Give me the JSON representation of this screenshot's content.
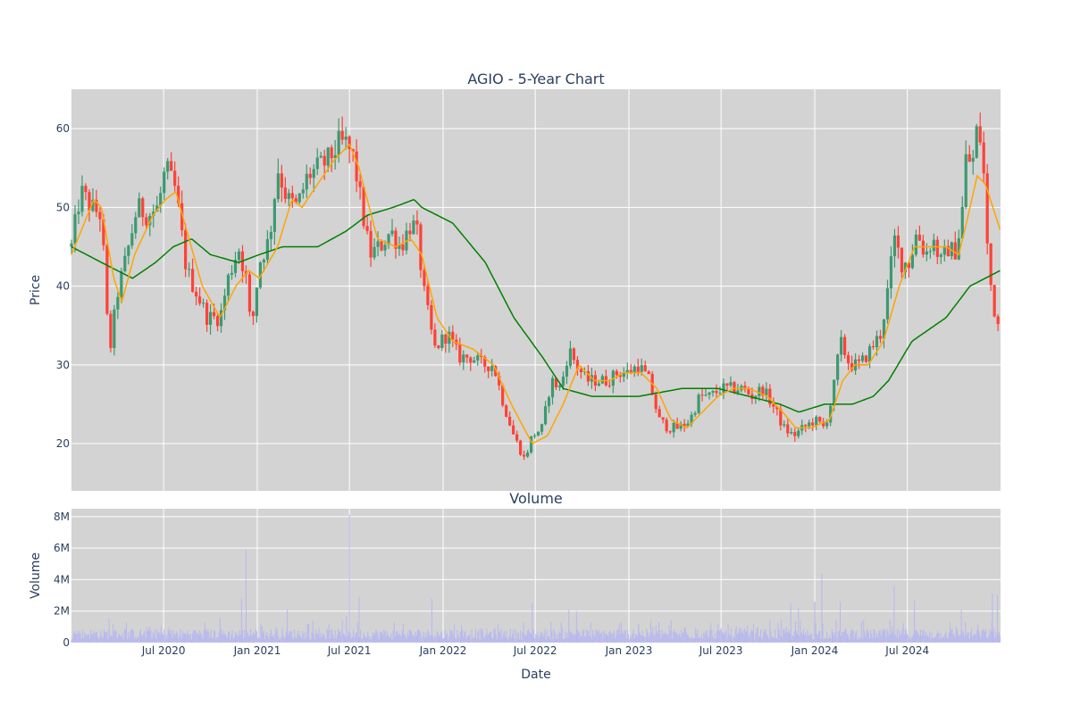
{
  "chart_data": [
    {
      "type": "candlestick",
      "title": "AGIO - 5-Year Chart",
      "xlabel": "",
      "ylabel": "Price",
      "x_range": [
        "2020-01-02",
        "2024-12-31"
      ],
      "ylim": [
        14,
        65
      ],
      "y_ticks": [
        20,
        30,
        40,
        50,
        60
      ],
      "grid": true,
      "legend": "none",
      "colors": {
        "increasing": "#3d9970",
        "decreasing": "#ff4136",
        "ma_short": "#ffa500",
        "ma_long": "#008000",
        "plot_bg": "#d3d3d3"
      },
      "price_anchors": [
        [
          "2020-01-02",
          45
        ],
        [
          "2020-01-20",
          52
        ],
        [
          "2020-02-10",
          50
        ],
        [
          "2020-03-01",
          49
        ],
        [
          "2020-03-16",
          31
        ],
        [
          "2020-04-01",
          39
        ],
        [
          "2020-04-20",
          44
        ],
        [
          "2020-05-10",
          50
        ],
        [
          "2020-06-01",
          49
        ],
        [
          "2020-06-20",
          50
        ],
        [
          "2020-07-05",
          55
        ],
        [
          "2020-07-25",
          52
        ],
        [
          "2020-08-15",
          42
        ],
        [
          "2020-09-05",
          39
        ],
        [
          "2020-09-25",
          36
        ],
        [
          "2020-10-20",
          36
        ],
        [
          "2020-11-05",
          41
        ],
        [
          "2020-11-25",
          45
        ],
        [
          "2020-12-10",
          41
        ],
        [
          "2020-12-20",
          34
        ],
        [
          "2021-01-05",
          43
        ],
        [
          "2021-01-25",
          46
        ],
        [
          "2021-02-10",
          55
        ],
        [
          "2021-03-01",
          51
        ],
        [
          "2021-03-20",
          50
        ],
        [
          "2021-04-10",
          54
        ],
        [
          "2021-05-01",
          55
        ],
        [
          "2021-05-20",
          56
        ],
        [
          "2021-06-10",
          58
        ],
        [
          "2021-06-25",
          58
        ],
        [
          "2021-07-10",
          56
        ],
        [
          "2021-07-25",
          50
        ],
        [
          "2021-08-10",
          44
        ],
        [
          "2021-08-30",
          45
        ],
        [
          "2021-09-20",
          47
        ],
        [
          "2021-10-10",
          45
        ],
        [
          "2021-10-30",
          48
        ],
        [
          "2021-11-10",
          47
        ],
        [
          "2021-11-25",
          39
        ],
        [
          "2021-12-15",
          32
        ],
        [
          "2022-01-10",
          34
        ],
        [
          "2022-02-01",
          31
        ],
        [
          "2022-02-25",
          31
        ],
        [
          "2022-03-20",
          30
        ],
        [
          "2022-04-10",
          30
        ],
        [
          "2022-04-30",
          25
        ],
        [
          "2022-05-20",
          21
        ],
        [
          "2022-06-10",
          18
        ],
        [
          "2022-06-25",
          21
        ],
        [
          "2022-07-15",
          22
        ],
        [
          "2022-08-01",
          28
        ],
        [
          "2022-08-20",
          27
        ],
        [
          "2022-09-05",
          32
        ],
        [
          "2022-09-20",
          30
        ],
        [
          "2022-10-10",
          28
        ],
        [
          "2022-11-01",
          28
        ],
        [
          "2022-11-20",
          28
        ],
        [
          "2022-12-10",
          29
        ],
        [
          "2022-12-31",
          29
        ],
        [
          "2023-01-20",
          30
        ],
        [
          "2023-02-10",
          28
        ],
        [
          "2023-03-01",
          23
        ],
        [
          "2023-03-20",
          22
        ],
        [
          "2023-04-10",
          22
        ],
        [
          "2023-05-01",
          23
        ],
        [
          "2023-05-20",
          26
        ],
        [
          "2023-06-10",
          26
        ],
        [
          "2023-07-01",
          27
        ],
        [
          "2023-07-20",
          27
        ],
        [
          "2023-08-10",
          27
        ],
        [
          "2023-09-01",
          26
        ],
        [
          "2023-09-20",
          27
        ],
        [
          "2023-10-10",
          25
        ],
        [
          "2023-11-01",
          22
        ],
        [
          "2023-11-20",
          21
        ],
        [
          "2023-12-10",
          22
        ],
        [
          "2024-01-01",
          23
        ],
        [
          "2024-01-20",
          22
        ],
        [
          "2024-02-05",
          26
        ],
        [
          "2024-02-20",
          33
        ],
        [
          "2024-03-10",
          30
        ],
        [
          "2024-03-30",
          30
        ],
        [
          "2024-04-20",
          32
        ],
        [
          "2024-05-10",
          34
        ],
        [
          "2024-05-25",
          40
        ],
        [
          "2024-06-05",
          46
        ],
        [
          "2024-06-20",
          43
        ],
        [
          "2024-07-05",
          43
        ],
        [
          "2024-07-20",
          47
        ],
        [
          "2024-08-05",
          44
        ],
        [
          "2024-08-20",
          46
        ],
        [
          "2024-09-05",
          43
        ],
        [
          "2024-09-20",
          45
        ],
        [
          "2024-10-01",
          44
        ],
        [
          "2024-10-15",
          48
        ],
        [
          "2024-10-25",
          57
        ],
        [
          "2024-11-05",
          55
        ],
        [
          "2024-11-15",
          60
        ],
        [
          "2024-11-25",
          58
        ],
        [
          "2024-12-05",
          45
        ],
        [
          "2024-12-15",
          38
        ],
        [
          "2024-12-31",
          34
        ]
      ],
      "ma_short_anchors": [
        [
          "2020-01-02",
          44
        ],
        [
          "2020-02-15",
          51
        ],
        [
          "2020-03-01",
          50
        ],
        [
          "2020-03-25",
          41
        ],
        [
          "2020-04-10",
          38
        ],
        [
          "2020-05-05",
          44
        ],
        [
          "2020-06-10",
          49
        ],
        [
          "2020-07-05",
          51
        ],
        [
          "2020-07-25",
          52
        ],
        [
          "2020-08-20",
          46
        ],
        [
          "2020-09-15",
          40
        ],
        [
          "2020-10-20",
          36
        ],
        [
          "2020-11-20",
          40
        ],
        [
          "2020-12-15",
          42
        ],
        [
          "2021-01-05",
          41
        ],
        [
          "2021-02-10",
          45
        ],
        [
          "2021-03-10",
          51
        ],
        [
          "2021-03-30",
          50
        ],
        [
          "2021-04-30",
          53
        ],
        [
          "2021-06-01",
          56
        ],
        [
          "2021-07-01",
          58
        ],
        [
          "2021-07-20",
          55
        ],
        [
          "2021-08-25",
          46
        ],
        [
          "2021-09-30",
          45
        ],
        [
          "2021-10-30",
          46
        ],
        [
          "2021-11-20",
          44
        ],
        [
          "2021-12-20",
          36
        ],
        [
          "2022-01-20",
          33
        ],
        [
          "2022-03-01",
          32
        ],
        [
          "2022-04-10",
          30
        ],
        [
          "2022-05-15",
          25
        ],
        [
          "2022-06-25",
          20
        ],
        [
          "2022-07-25",
          21
        ],
        [
          "2022-08-25",
          25
        ],
        [
          "2022-09-25",
          30
        ],
        [
          "2022-10-25",
          28
        ],
        [
          "2022-11-25",
          28
        ],
        [
          "2022-12-20",
          29
        ],
        [
          "2023-01-25",
          29
        ],
        [
          "2023-02-25",
          27
        ],
        [
          "2023-03-25",
          23
        ],
        [
          "2023-04-25",
          22
        ],
        [
          "2023-05-25",
          24
        ],
        [
          "2023-06-25",
          26
        ],
        [
          "2023-07-25",
          27
        ],
        [
          "2023-08-25",
          27
        ],
        [
          "2023-09-30",
          26
        ],
        [
          "2023-10-30",
          24
        ],
        [
          "2023-11-25",
          22
        ],
        [
          "2023-12-25",
          22
        ],
        [
          "2024-01-30",
          23
        ],
        [
          "2024-02-25",
          28
        ],
        [
          "2024-03-20",
          30
        ],
        [
          "2024-04-15",
          30
        ],
        [
          "2024-05-15",
          33
        ],
        [
          "2024-06-15",
          40
        ],
        [
          "2024-07-15",
          45
        ],
        [
          "2024-08-15",
          45
        ],
        [
          "2024-09-15",
          45
        ],
        [
          "2024-10-10",
          44
        ],
        [
          "2024-10-25",
          48
        ],
        [
          "2024-11-15",
          54
        ],
        [
          "2024-12-01",
          53
        ],
        [
          "2024-12-31",
          47
        ]
      ],
      "ma_long_anchors": [
        [
          "2020-01-02",
          45
        ],
        [
          "2020-03-01",
          43
        ],
        [
          "2020-05-01",
          41
        ],
        [
          "2020-06-15",
          43
        ],
        [
          "2020-07-20",
          45
        ],
        [
          "2020-08-25",
          46
        ],
        [
          "2020-10-01",
          44
        ],
        [
          "2020-11-25",
          43
        ],
        [
          "2021-01-05",
          44
        ],
        [
          "2021-02-20",
          45
        ],
        [
          "2021-04-30",
          45
        ],
        [
          "2021-06-25",
          47
        ],
        [
          "2021-08-05",
          49
        ],
        [
          "2021-09-25",
          50
        ],
        [
          "2021-11-05",
          51
        ],
        [
          "2021-11-20",
          50
        ],
        [
          "2022-01-20",
          48
        ],
        [
          "2022-03-25",
          43
        ],
        [
          "2022-05-20",
          36
        ],
        [
          "2022-07-15",
          31
        ],
        [
          "2022-08-25",
          27
        ],
        [
          "2022-10-20",
          26
        ],
        [
          "2023-01-20",
          26
        ],
        [
          "2023-04-15",
          27
        ],
        [
          "2023-06-25",
          27
        ],
        [
          "2023-08-25",
          26
        ],
        [
          "2023-10-25",
          25
        ],
        [
          "2023-12-01",
          24
        ],
        [
          "2024-01-20",
          25
        ],
        [
          "2024-03-15",
          25
        ],
        [
          "2024-04-25",
          26
        ],
        [
          "2024-05-25",
          28
        ],
        [
          "2024-07-10",
          33
        ],
        [
          "2024-09-15",
          36
        ],
        [
          "2024-11-01",
          40
        ],
        [
          "2024-12-31",
          42
        ]
      ]
    },
    {
      "type": "bar",
      "title": "Volume",
      "xlabel": "Date",
      "ylabel": "Volume",
      "ylim": [
        0,
        8500000
      ],
      "y_ticks": [
        0,
        2000000,
        4000000,
        6000000,
        8000000
      ],
      "y_tick_labels": [
        "0",
        "2M",
        "4M",
        "6M",
        "8M"
      ],
      "x_ticks": [
        "2020-07-01",
        "2021-01-01",
        "2021-07-01",
        "2022-01-01",
        "2022-07-01",
        "2023-01-01",
        "2023-07-01",
        "2024-01-01",
        "2024-07-01"
      ],
      "x_tick_labels": [
        "Jul 2020",
        "Jan 2021",
        "Jul 2021",
        "Jan 2022",
        "Jul 2022",
        "Jan 2023",
        "Jul 2023",
        "Jan 2024",
        "Jul 2024"
      ],
      "grid": true,
      "colors": {
        "bar": "#b7b7f0",
        "plot_bg": "#d3d3d3"
      },
      "volume_spikes": [
        [
          "2020-03-16",
          1500000
        ],
        [
          "2020-10-20",
          1600000
        ],
        [
          "2020-12-01",
          2800000
        ],
        [
          "2020-12-10",
          5900000
        ],
        [
          "2021-03-01",
          2100000
        ],
        [
          "2021-06-25",
          1700000
        ],
        [
          "2021-07-01",
          8100000
        ],
        [
          "2021-07-20",
          2900000
        ],
        [
          "2021-12-10",
          2800000
        ],
        [
          "2022-06-25",
          2500000
        ],
        [
          "2022-09-05",
          2100000
        ],
        [
          "2022-09-20",
          2000000
        ],
        [
          "2023-01-20",
          1200000
        ],
        [
          "2023-06-25",
          1200000
        ],
        [
          "2023-11-15",
          2500000
        ],
        [
          "2023-11-30",
          2200000
        ],
        [
          "2024-01-01",
          2600000
        ],
        [
          "2024-01-15",
          4400000
        ],
        [
          "2024-02-20",
          2600000
        ],
        [
          "2024-06-05",
          3600000
        ],
        [
          "2024-07-15",
          2700000
        ],
        [
          "2024-10-15",
          2100000
        ],
        [
          "2024-12-15",
          3100000
        ],
        [
          "2024-12-25",
          3000000
        ]
      ]
    }
  ]
}
